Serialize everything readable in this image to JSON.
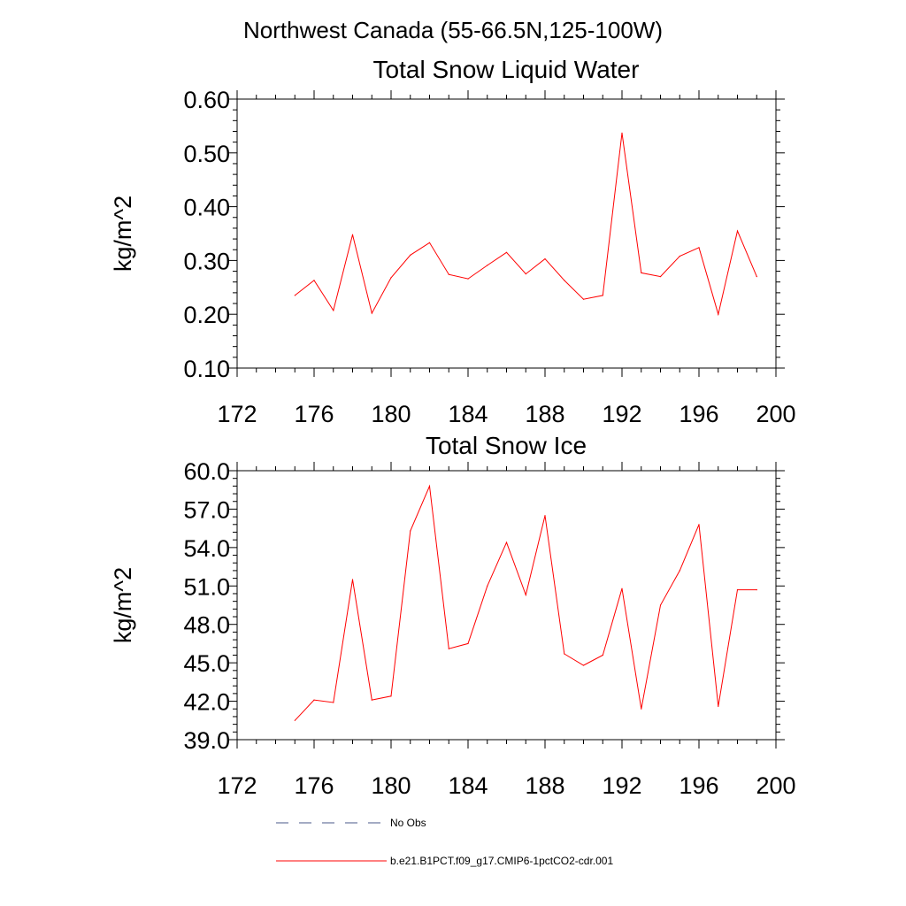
{
  "figure_title": "Northwest Canada (55-66.5N,125-100W)",
  "chart_data": [
    {
      "type": "line",
      "title": "Total Snow Liquid Water",
      "xlabel": "",
      "ylabel": "kg/m^2",
      "xlim": [
        172,
        200
      ],
      "ylim": [
        0.1,
        0.6
      ],
      "x_ticks": [
        "172",
        "176",
        "180",
        "184",
        "188",
        "192",
        "196",
        "200"
      ],
      "y_ticks": [
        "0.10",
        "0.20",
        "0.30",
        "0.40",
        "0.50",
        "0.60"
      ],
      "series": [
        {
          "name": "b.e21.B1PCT.f09_g17.CMIP6-1pctCO2-cdr.001",
          "color": "#ff0000",
          "x": [
            175,
            176,
            177,
            178,
            179,
            180,
            181,
            182,
            183,
            184,
            185,
            186,
            187,
            188,
            189,
            190,
            191,
            192,
            193,
            194,
            195,
            196,
            197,
            198,
            199
          ],
          "y": [
            0.235,
            0.263,
            0.207,
            0.348,
            0.202,
            0.268,
            0.31,
            0.333,
            0.274,
            0.266,
            0.291,
            0.315,
            0.275,
            0.303,
            0.263,
            0.228,
            0.235,
            0.537,
            0.277,
            0.27,
            0.308,
            0.324,
            0.2,
            0.355,
            0.27
          ]
        }
      ]
    },
    {
      "type": "line",
      "title": "Total Snow Ice",
      "xlabel": "",
      "ylabel": "kg/m^2",
      "xlim": [
        172,
        200
      ],
      "ylim": [
        39.0,
        60.0
      ],
      "x_ticks": [
        "172",
        "176",
        "180",
        "184",
        "188",
        "192",
        "196",
        "200"
      ],
      "y_ticks": [
        "39.0",
        "42.0",
        "45.0",
        "48.0",
        "51.0",
        "54.0",
        "57.0",
        "60.0"
      ],
      "series": [
        {
          "name": "b.e21.B1PCT.f09_g17.CMIP6-1pctCO2-cdr.001",
          "color": "#ff0000",
          "x": [
            175,
            176,
            177,
            178,
            179,
            180,
            181,
            182,
            183,
            184,
            185,
            186,
            187,
            188,
            189,
            190,
            191,
            192,
            193,
            194,
            195,
            196,
            197,
            198,
            199
          ],
          "y": [
            40.5,
            42.1,
            41.9,
            51.5,
            42.1,
            42.4,
            55.3,
            58.8,
            46.1,
            46.5,
            51.0,
            54.4,
            50.3,
            56.5,
            45.7,
            44.8,
            45.6,
            50.8,
            41.4,
            49.5,
            52.2,
            55.8,
            41.6,
            50.7,
            50.7
          ]
        }
      ]
    }
  ],
  "legend": {
    "items": [
      {
        "label": "No Obs",
        "style": "dashed",
        "color": "#4a5a8a"
      },
      {
        "label": "b.e21.B1PCT.f09_g17.CMIP6-1pctCO2-cdr.001",
        "style": "solid",
        "color": "#ff0000"
      }
    ]
  }
}
